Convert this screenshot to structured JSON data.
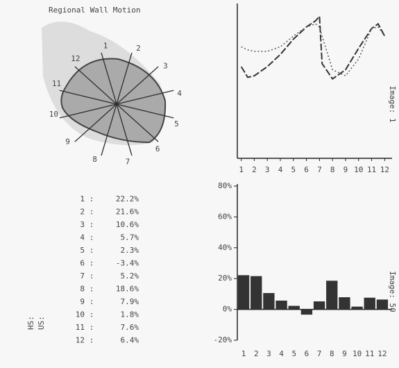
{
  "title": "Regional Wall Motion",
  "side_labels": [
    "HS:",
    "US:"
  ],
  "separator": ":",
  "chart_data": [
    {
      "type": "line",
      "xlabel_side": "Image: 1",
      "x": [
        1,
        1.5,
        2,
        3,
        4,
        5,
        6,
        6.7,
        7,
        7.2,
        8,
        9,
        10,
        11,
        11.5,
        12
      ],
      "xlim": [
        0.7,
        12.3
      ],
      "ylim": [
        0,
        100
      ],
      "xticks": [
        {
          "value": 1,
          "label": "1"
        },
        {
          "value": 2,
          "label": "2"
        },
        {
          "value": 3,
          "label": "3"
        },
        {
          "value": 4,
          "label": "4"
        },
        {
          "value": 5,
          "label": "5"
        },
        {
          "value": 6,
          "label": "6"
        },
        {
          "value": 7,
          "label": "7"
        },
        {
          "value": 8,
          "label": "8"
        },
        {
          "value": 9,
          "label": "9"
        },
        {
          "value": 10,
          "label": "10"
        },
        {
          "value": 11,
          "label": "11"
        },
        {
          "value": 12,
          "label": "12"
        }
      ],
      "series": [
        {
          "style": "dashed",
          "color": "#333333",
          "values": [
            60,
            53,
            54,
            60,
            68,
            78,
            86,
            90,
            93,
            62,
            52,
            58,
            72,
            85,
            88,
            80
          ]
        },
        {
          "style": "dotted",
          "color": "#555555",
          "values": [
            73,
            71,
            70,
            70,
            73,
            80,
            86,
            88,
            86,
            80,
            58,
            54,
            65,
            85,
            86,
            80
          ]
        }
      ]
    },
    {
      "type": "bar",
      "xlabel_side": "Image: 50",
      "color": "#333333",
      "categories": [
        "1",
        "2",
        "3",
        "4",
        "5",
        "6",
        "7",
        "8",
        "9",
        "10",
        "11",
        "12"
      ],
      "values": [
        22.2,
        21.6,
        10.6,
        5.7,
        2.3,
        -3.4,
        5.2,
        18.6,
        7.9,
        1.8,
        7.6,
        6.4
      ],
      "value_labels": [
        "22.2%",
        "21.6%",
        "10.6%",
        "5.7%",
        "2.3%",
        "-3.4%",
        "5.2%",
        "18.6%",
        "7.9%",
        "1.8%",
        "7.6%",
        "6.4%"
      ],
      "ylim": [
        -20,
        80
      ],
      "yticks": [
        {
          "value": 80,
          "label": "80%"
        },
        {
          "value": 60,
          "label": "60%"
        },
        {
          "value": 40,
          "label": "40%"
        },
        {
          "value": 20,
          "label": "20%"
        },
        {
          "value": 0,
          "label": "0%"
        },
        {
          "value": -20,
          "label": "-20%"
        }
      ]
    }
  ]
}
